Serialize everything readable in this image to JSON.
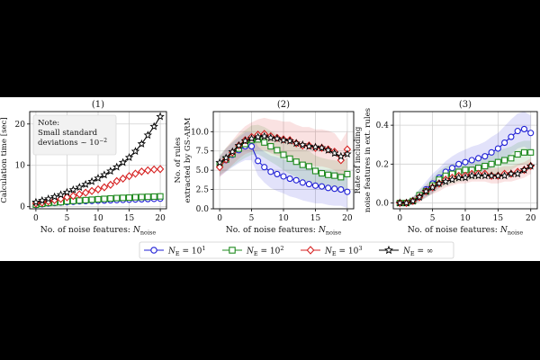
{
  "colors": {
    "ne10": "#1f1fd6",
    "ne100": "#1f8a1f",
    "ne1000": "#d62020",
    "neinf": "#000000",
    "bg_outer": "#000000",
    "bg_figure": "#ffffff"
  },
  "legend": {
    "entries": [
      {
        "key": "ne10",
        "label": "N",
        "sub": "E",
        "tail": " = 10",
        "sup": "1",
        "marker": "circle"
      },
      {
        "key": "ne100",
        "label": "N",
        "sub": "E",
        "tail": " = 10",
        "sup": "2",
        "marker": "square"
      },
      {
        "key": "ne1000",
        "label": "N",
        "sub": "E",
        "tail": " = 10",
        "sup": "3",
        "marker": "diamond"
      },
      {
        "key": "neinf",
        "label": "N",
        "sub": "E",
        "tail": " = ∞",
        "sup": "",
        "marker": "star"
      }
    ]
  },
  "chart_data": [
    {
      "type": "line",
      "panel_title": "(1)",
      "xlabel": "No. of noise features: ",
      "xlabel_math": "N",
      "xlabel_sub": "noise",
      "ylabel_lines": [
        "Calculation time [sec]"
      ],
      "xlim": [
        -1,
        21
      ],
      "ylim": [
        -0.5,
        23
      ],
      "xticks": [
        0,
        5,
        10,
        15,
        20
      ],
      "yticks": [
        0,
        10,
        20
      ],
      "note": {
        "lines": [
          "Note:",
          "Small standard",
          "deviations ~ 10"
        ],
        "sup": "−2"
      },
      "x": [
        0,
        1,
        2,
        3,
        4,
        5,
        6,
        7,
        8,
        9,
        10,
        11,
        12,
        13,
        14,
        15,
        16,
        17,
        18,
        19,
        20
      ],
      "series": [
        {
          "key": "ne10",
          "values": [
            0.4,
            0.6,
            0.8,
            0.9,
            1.0,
            1.1,
            1.2,
            1.3,
            1.35,
            1.4,
            1.45,
            1.5,
            1.55,
            1.6,
            1.65,
            1.7,
            1.75,
            1.8,
            1.85,
            1.9,
            1.95
          ],
          "band": null
        },
        {
          "key": "ne100",
          "values": [
            0.5,
            0.7,
            0.9,
            1.0,
            1.1,
            1.3,
            1.4,
            1.5,
            1.6,
            1.7,
            1.8,
            1.9,
            2.0,
            2.1,
            2.15,
            2.2,
            2.3,
            2.35,
            2.4,
            2.45,
            2.5
          ],
          "band": null
        },
        {
          "key": "ne1000",
          "values": [
            0.8,
            1.0,
            1.3,
            1.6,
            1.9,
            2.3,
            2.6,
            3.0,
            3.4,
            3.8,
            4.2,
            4.7,
            5.3,
            6.2,
            6.8,
            7.4,
            8.0,
            8.5,
            8.8,
            9.0,
            9.1
          ],
          "band": null
        },
        {
          "key": "neinf",
          "values": [
            1.1,
            1.5,
            1.9,
            2.4,
            2.9,
            3.5,
            4.1,
            4.7,
            5.4,
            6.1,
            6.9,
            7.7,
            8.6,
            9.6,
            10.7,
            11.9,
            13.4,
            15.2,
            17.3,
            19.4,
            21.8
          ],
          "band": null
        }
      ]
    },
    {
      "type": "line",
      "panel_title": "(2)",
      "xlabel": "No. of noise features: ",
      "xlabel_math": "N",
      "xlabel_sub": "noise",
      "ylabel_lines": [
        "No. of rules",
        "extracted by GS-ARM"
      ],
      "xlim": [
        -1,
        21
      ],
      "ylim": [
        0,
        12.6
      ],
      "xticks": [
        0,
        5,
        10,
        15,
        20
      ],
      "yticks": [
        0.0,
        2.5,
        5.0,
        7.5,
        10.0
      ],
      "note": null,
      "x": [
        0,
        1,
        2,
        3,
        4,
        5,
        6,
        7,
        8,
        9,
        10,
        11,
        12,
        13,
        14,
        15,
        16,
        17,
        18,
        19,
        20
      ],
      "series": [
        {
          "key": "ne10",
          "values": [
            5.5,
            6.3,
            7.0,
            7.6,
            8.1,
            8.1,
            6.2,
            5.4,
            4.8,
            4.5,
            4.2,
            3.9,
            3.7,
            3.4,
            3.2,
            3.0,
            2.9,
            2.7,
            2.6,
            2.5,
            2.2
          ],
          "band": [
            1.3,
            1.5,
            1.6,
            1.7,
            1.8,
            1.8,
            1.9,
            2.0,
            2.1,
            2.2,
            2.2,
            2.3,
            2.3,
            2.3,
            2.3,
            2.3,
            2.2,
            2.2,
            2.2,
            2.1,
            2.1
          ]
        },
        {
          "key": "ne100",
          "values": [
            5.7,
            6.4,
            7.1,
            7.8,
            8.4,
            8.9,
            9.0,
            8.6,
            8.1,
            7.6,
            7.0,
            6.5,
            6.1,
            5.7,
            5.5,
            4.9,
            4.6,
            4.4,
            4.3,
            4.1,
            4.5
          ],
          "band": [
            1.3,
            1.5,
            1.6,
            1.7,
            1.8,
            1.9,
            1.9,
            2.0,
            2.0,
            2.0,
            2.0,
            2.0,
            2.0,
            2.0,
            2.0,
            2.0,
            2.0,
            2.0,
            2.0,
            2.0,
            2.0
          ]
        },
        {
          "key": "ne1000",
          "values": [
            5.4,
            6.4,
            7.3,
            8.2,
            8.9,
            9.3,
            9.6,
            9.7,
            9.4,
            9.2,
            9.0,
            8.9,
            8.5,
            8.2,
            8.2,
            7.9,
            7.9,
            7.7,
            7.4,
            6.3,
            7.7
          ],
          "band": [
            1.3,
            1.5,
            1.6,
            1.7,
            1.8,
            1.9,
            2.0,
            2.1,
            2.2,
            2.3,
            2.3,
            2.4,
            2.4,
            2.4,
            2.4,
            2.4,
            2.4,
            2.4,
            2.4,
            2.4,
            2.4
          ]
        },
        {
          "key": "neinf",
          "values": [
            6.0,
            6.6,
            7.4,
            8.2,
            8.8,
            9.1,
            9.3,
            9.4,
            9.2,
            9.1,
            8.9,
            8.8,
            8.5,
            8.3,
            8.1,
            8.0,
            7.9,
            7.6,
            7.2,
            6.8,
            7.1
          ],
          "band": null
        }
      ]
    },
    {
      "type": "line",
      "panel_title": "(3)",
      "xlabel": "No. of noise features: ",
      "xlabel_math": "N",
      "xlabel_sub": "noise",
      "ylabel_lines": [
        "Rate of including",
        "noise features in ext. rules"
      ],
      "xlim": [
        -1,
        21
      ],
      "ylim": [
        -0.03,
        0.47
      ],
      "xticks": [
        0,
        5,
        10,
        15,
        20
      ],
      "yticks": [
        0.0,
        0.2,
        0.4
      ],
      "note": null,
      "x": [
        0,
        1,
        2,
        3,
        4,
        5,
        6,
        7,
        8,
        9,
        10,
        11,
        12,
        13,
        14,
        15,
        16,
        17,
        18,
        19,
        20
      ],
      "series": [
        {
          "key": "ne10",
          "values": [
            0.0,
            0.0,
            0.01,
            0.04,
            0.07,
            0.1,
            0.13,
            0.16,
            0.18,
            0.2,
            0.21,
            0.22,
            0.23,
            0.24,
            0.26,
            0.28,
            0.31,
            0.34,
            0.37,
            0.38,
            0.36
          ],
          "band": [
            0.01,
            0.015,
            0.02,
            0.03,
            0.04,
            0.05,
            0.05,
            0.055,
            0.06,
            0.06,
            0.065,
            0.07,
            0.07,
            0.075,
            0.08,
            0.08,
            0.085,
            0.09,
            0.09,
            0.09,
            0.09
          ]
        },
        {
          "key": "ne100",
          "values": [
            0.0,
            0.0,
            0.01,
            0.04,
            0.06,
            0.09,
            0.12,
            0.14,
            0.15,
            0.16,
            0.17,
            0.17,
            0.18,
            0.19,
            0.2,
            0.21,
            0.22,
            0.23,
            0.25,
            0.26,
            0.26
          ],
          "band": [
            0.01,
            0.015,
            0.02,
            0.03,
            0.035,
            0.04,
            0.045,
            0.05,
            0.05,
            0.05,
            0.05,
            0.05,
            0.055,
            0.055,
            0.055,
            0.06,
            0.06,
            0.06,
            0.06,
            0.06,
            0.06
          ]
        },
        {
          "key": "ne1000",
          "values": [
            0.0,
            0.0,
            0.01,
            0.03,
            0.06,
            0.08,
            0.1,
            0.12,
            0.13,
            0.14,
            0.14,
            0.15,
            0.15,
            0.15,
            0.14,
            0.14,
            0.15,
            0.15,
            0.16,
            0.17,
            0.19
          ],
          "band": [
            0.01,
            0.015,
            0.02,
            0.025,
            0.03,
            0.035,
            0.04,
            0.04,
            0.04,
            0.04,
            0.04,
            0.04,
            0.04,
            0.04,
            0.04,
            0.04,
            0.04,
            0.04,
            0.04,
            0.04,
            0.04
          ]
        },
        {
          "key": "neinf",
          "values": [
            0.0,
            0.0,
            0.01,
            0.03,
            0.06,
            0.08,
            0.1,
            0.11,
            0.12,
            0.13,
            0.13,
            0.14,
            0.14,
            0.14,
            0.14,
            0.14,
            0.14,
            0.15,
            0.15,
            0.17,
            0.19
          ],
          "band": null
        }
      ]
    }
  ]
}
